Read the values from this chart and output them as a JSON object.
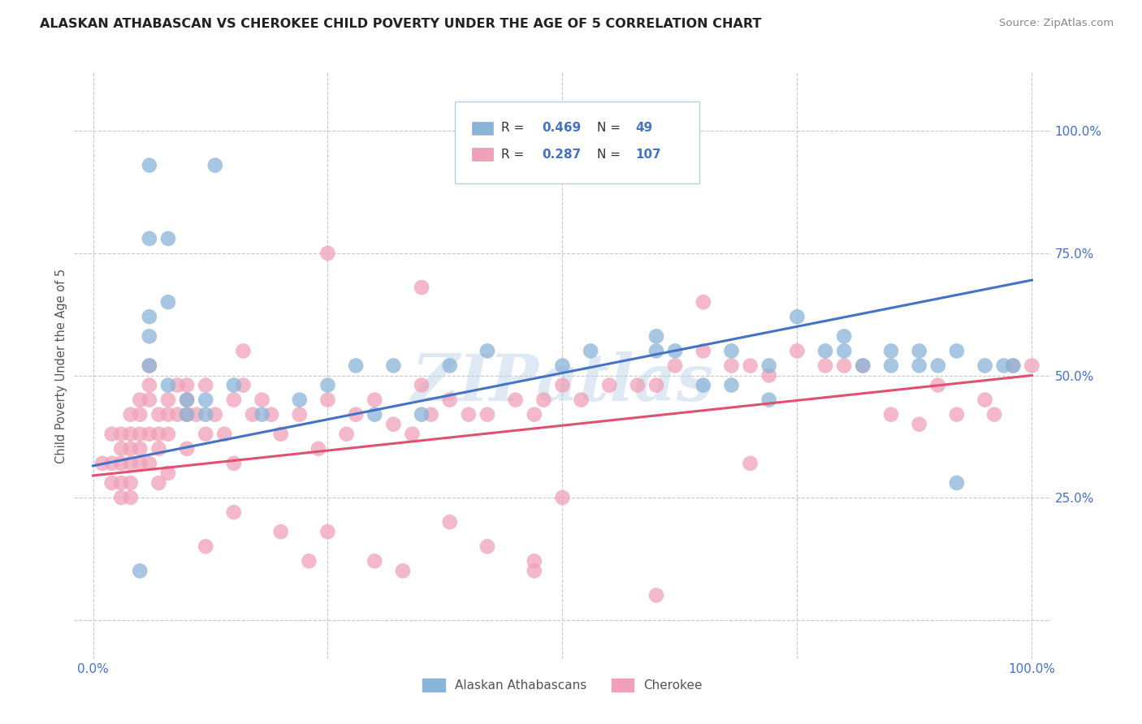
{
  "title": "ALASKAN ATHABASCAN VS CHEROKEE CHILD POVERTY UNDER THE AGE OF 5 CORRELATION CHART",
  "source": "Source: ZipAtlas.com",
  "ylabel": "Child Poverty Under the Age of 5",
  "xlim": [
    -0.02,
    1.02
  ],
  "ylim": [
    -0.08,
    1.12
  ],
  "blue_color": "#8ab4d8",
  "pink_color": "#f0a0b8",
  "blue_line_color": "#4472c4",
  "pink_line_color": "#e05070",
  "blue_line_y_start": 0.315,
  "blue_line_y_end": 0.695,
  "pink_line_y_start": 0.295,
  "pink_line_y_end": 0.5,
  "grid_color": "#c8c8c8",
  "bg_color": "#ffffff",
  "title_color": "#222222",
  "axis_label_color": "#555555",
  "tick_color": "#4472c4",
  "source_color": "#888888",
  "watermark": "ZIPatlas",
  "blue_scatter_x": [
    0.06,
    0.13,
    0.06,
    0.08,
    0.08,
    0.06,
    0.06,
    0.06,
    0.08,
    0.1,
    0.1,
    0.12,
    0.12,
    0.15,
    0.18,
    0.22,
    0.25,
    0.28,
    0.32,
    0.38,
    0.42,
    0.5,
    0.53,
    0.6,
    0.62,
    0.68,
    0.72,
    0.75,
    0.78,
    0.8,
    0.82,
    0.85,
    0.88,
    0.9,
    0.92,
    0.95,
    0.97,
    0.98,
    0.3,
    0.35,
    0.6,
    0.65,
    0.68,
    0.72,
    0.8,
    0.85,
    0.88,
    0.92,
    0.05
  ],
  "blue_scatter_y": [
    0.93,
    0.93,
    0.78,
    0.78,
    0.65,
    0.62,
    0.58,
    0.52,
    0.48,
    0.45,
    0.42,
    0.45,
    0.42,
    0.48,
    0.42,
    0.45,
    0.48,
    0.52,
    0.52,
    0.52,
    0.55,
    0.52,
    0.55,
    0.58,
    0.55,
    0.55,
    0.52,
    0.62,
    0.55,
    0.58,
    0.52,
    0.55,
    0.55,
    0.52,
    0.55,
    0.52,
    0.52,
    0.52,
    0.42,
    0.42,
    0.55,
    0.48,
    0.48,
    0.45,
    0.55,
    0.52,
    0.52,
    0.28,
    0.1
  ],
  "pink_scatter_x": [
    0.01,
    0.02,
    0.02,
    0.02,
    0.03,
    0.03,
    0.03,
    0.03,
    0.03,
    0.04,
    0.04,
    0.04,
    0.04,
    0.04,
    0.04,
    0.05,
    0.05,
    0.05,
    0.05,
    0.05,
    0.06,
    0.06,
    0.06,
    0.06,
    0.06,
    0.07,
    0.07,
    0.07,
    0.07,
    0.08,
    0.08,
    0.08,
    0.08,
    0.09,
    0.09,
    0.1,
    0.1,
    0.1,
    0.1,
    0.11,
    0.12,
    0.12,
    0.13,
    0.14,
    0.15,
    0.15,
    0.16,
    0.16,
    0.17,
    0.18,
    0.19,
    0.2,
    0.22,
    0.24,
    0.25,
    0.27,
    0.28,
    0.3,
    0.32,
    0.34,
    0.35,
    0.36,
    0.38,
    0.4,
    0.42,
    0.45,
    0.47,
    0.48,
    0.5,
    0.52,
    0.55,
    0.58,
    0.6,
    0.62,
    0.65,
    0.68,
    0.7,
    0.72,
    0.75,
    0.78,
    0.8,
    0.82,
    0.85,
    0.88,
    0.9,
    0.92,
    0.95,
    0.96,
    0.98,
    1.0,
    0.25,
    0.35,
    0.47,
    0.65,
    0.7,
    0.25,
    0.47,
    0.12,
    0.15,
    0.2,
    0.23,
    0.3,
    0.33,
    0.38,
    0.42,
    0.5,
    0.6
  ],
  "pink_scatter_y": [
    0.32,
    0.38,
    0.32,
    0.28,
    0.38,
    0.35,
    0.32,
    0.28,
    0.25,
    0.42,
    0.38,
    0.35,
    0.32,
    0.28,
    0.25,
    0.45,
    0.42,
    0.38,
    0.35,
    0.32,
    0.52,
    0.48,
    0.45,
    0.38,
    0.32,
    0.42,
    0.38,
    0.35,
    0.28,
    0.45,
    0.42,
    0.38,
    0.3,
    0.48,
    0.42,
    0.48,
    0.45,
    0.42,
    0.35,
    0.42,
    0.48,
    0.38,
    0.42,
    0.38,
    0.45,
    0.32,
    0.55,
    0.48,
    0.42,
    0.45,
    0.42,
    0.38,
    0.42,
    0.35,
    0.45,
    0.38,
    0.42,
    0.45,
    0.4,
    0.38,
    0.48,
    0.42,
    0.45,
    0.42,
    0.42,
    0.45,
    0.42,
    0.45,
    0.48,
    0.45,
    0.48,
    0.48,
    0.48,
    0.52,
    0.55,
    0.52,
    0.52,
    0.5,
    0.55,
    0.52,
    0.52,
    0.52,
    0.42,
    0.4,
    0.48,
    0.42,
    0.45,
    0.42,
    0.52,
    0.52,
    0.75,
    0.68,
    0.12,
    0.65,
    0.32,
    0.18,
    0.1,
    0.15,
    0.22,
    0.18,
    0.12,
    0.12,
    0.1,
    0.2,
    0.15,
    0.25,
    0.05
  ]
}
